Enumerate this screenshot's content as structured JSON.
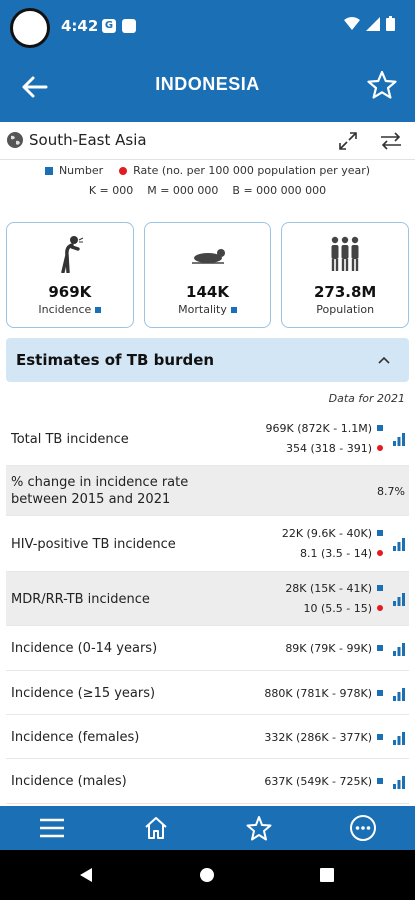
{
  "status_bar": {
    "time": "4:42",
    "icon1": "G"
  },
  "app_bar": {
    "title": "INDONESIA",
    "back_icon": "arrow-left-icon",
    "favorite_icon": "star-outline-icon"
  },
  "region": {
    "name": "South-East Asia"
  },
  "legend": {
    "number_label": "Number",
    "rate_label": "Rate (no. per 100 000 population per year)",
    "units": "K = 000    M = 000 000    B = 000 000 000"
  },
  "cards": [
    {
      "value": "969K",
      "label": "Incidence",
      "icon": "cough-person-icon"
    },
    {
      "value": "144K",
      "label": "Mortality",
      "icon": "lying-person-icon"
    },
    {
      "value": "273.8M",
      "label": "Population",
      "icon": "people-group-icon"
    }
  ],
  "section": {
    "title": "Estimates of TB burden",
    "data_for": "Data for 2021"
  },
  "rows": [
    {
      "label": "Total TB incidence",
      "number": "969K (872K - 1.1M)",
      "rate": "354 (318 - 391)"
    },
    {
      "label": "% change in incidence rate between 2015 and 2021",
      "value": "8.7%"
    },
    {
      "label": "HIV-positive TB incidence",
      "number": "22K (9.6K - 40K)",
      "rate": "8.1 (3.5 - 14)"
    },
    {
      "label": "MDR/RR-TB incidence",
      "number": "28K (15K - 41K)",
      "rate": "10 (5.5 - 15)"
    },
    {
      "label": "Incidence (0-14 years)",
      "number": "89K (79K - 99K)"
    },
    {
      "label": "Incidence (≥15 years)",
      "number": "880K (781K - 978K)"
    },
    {
      "label": "Incidence (females)",
      "number": "332K (286K - 377K)"
    },
    {
      "label": "Incidence (males)",
      "number": "637K (549K - 725K)"
    }
  ],
  "bottom_nav": [
    "menu-icon",
    "home-icon",
    "star-icon",
    "more-icon"
  ],
  "colors": {
    "primary": "#1a6fb5",
    "rate": "#e31b23",
    "section_bg": "#d3e6f6"
  }
}
